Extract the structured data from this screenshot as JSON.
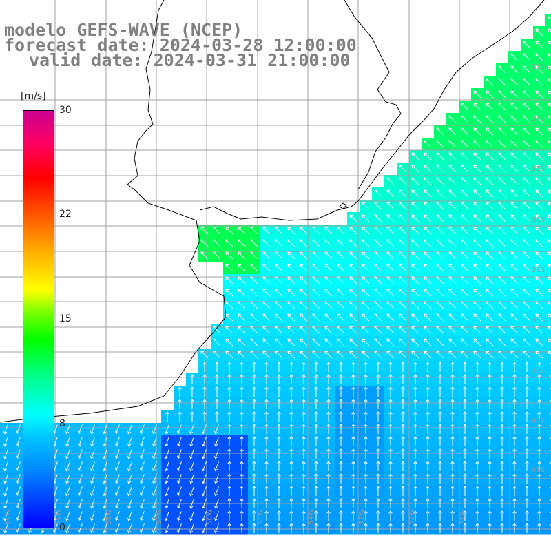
{
  "title": {
    "line1": "modelo GEFS-WAVE (NCEP)",
    "line2": "forecast date: 2024-03-28 12:00:00",
    "line3": "valid date: 2024-03-31 21:00:00"
  },
  "colorbar": {
    "unit": "[m/s]",
    "ticks": [
      "30",
      "22",
      "15",
      "8",
      "0"
    ],
    "range": [
      0,
      30
    ]
  },
  "grid": {
    "lat_labels": [
      "33S",
      "34S",
      "35S",
      "36S",
      "37S",
      "38S",
      "39S",
      "40S",
      "41S"
    ],
    "lon_labels": [
      "60W",
      "59W",
      "58W",
      "57W",
      "56W",
      "55W",
      "54W",
      "53W",
      "52W",
      "51W"
    ]
  },
  "colors": {
    "land": "#ffffff",
    "grid": "#a0a0a0",
    "coast": "#000000",
    "arrow": "#ffffff",
    "title": "#808080"
  }
}
